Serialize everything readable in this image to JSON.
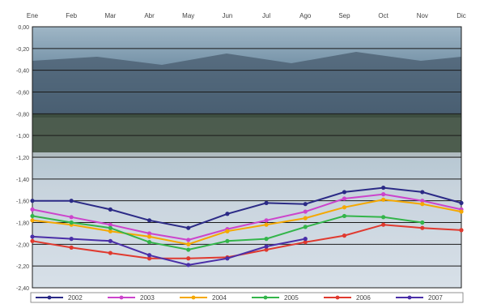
{
  "chart_data": {
    "type": "line",
    "title": "",
    "xlabel": "",
    "ylabel": "",
    "categories": [
      "Ene",
      "Feb",
      "Mar",
      "Abr",
      "May",
      "Jun",
      "Jul",
      "Ago",
      "Sep",
      "Oct",
      "Nov",
      "Dic"
    ],
    "y_tick_labels": [
      "0,00",
      "-0,20",
      "-0,40",
      "-0,60",
      "-0,80",
      "-1,00",
      "-1,20",
      "-1,40",
      "-1,60",
      "-1,80",
      "-2,00",
      "-2,20",
      "-2,40"
    ],
    "ylim": [
      -2.4,
      0
    ],
    "grid": true,
    "legend_position": "bottom",
    "background": "photo of a lake with mountains and cloudy sky",
    "series": [
      {
        "name": "2002",
        "color": "#2b2a86",
        "values": [
          -1.6,
          -1.6,
          -1.68,
          -1.78,
          -1.85,
          -1.72,
          -1.62,
          -1.63,
          -1.52,
          -1.48,
          -1.52,
          -1.62
        ]
      },
      {
        "name": "2003",
        "color": "#cc44cc",
        "values": [
          -1.68,
          -1.75,
          -1.82,
          -1.9,
          -1.96,
          -1.86,
          -1.78,
          -1.7,
          -1.58,
          -1.54,
          -1.6,
          -1.68
        ]
      },
      {
        "name": "2004",
        "color": "#f5a800",
        "values": [
          -1.78,
          -1.82,
          -1.88,
          -1.93,
          -2.0,
          -1.88,
          -1.82,
          -1.76,
          -1.66,
          -1.59,
          -1.63,
          -1.7
        ]
      },
      {
        "name": "2005",
        "color": "#33b54a",
        "values": [
          -1.74,
          -1.8,
          -1.85,
          -1.98,
          -2.05,
          -1.97,
          -1.95,
          -1.84,
          -1.74,
          -1.75,
          -1.8,
          null
        ]
      },
      {
        "name": "2006",
        "color": "#e03a2f",
        "values": [
          -1.97,
          -2.03,
          -2.08,
          -2.13,
          -2.13,
          -2.12,
          -2.05,
          -1.98,
          -1.92,
          -1.82,
          -1.85,
          -1.87
        ]
      },
      {
        "name": "2007",
        "color": "#4a2fa8",
        "values": [
          -1.93,
          -1.95,
          -1.97,
          -2.1,
          -2.19,
          -2.13,
          -2.02,
          -1.95,
          null,
          null,
          null,
          null
        ]
      }
    ]
  }
}
